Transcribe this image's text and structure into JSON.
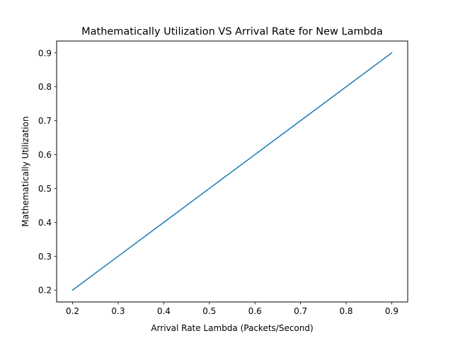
{
  "chart_data": {
    "type": "line",
    "title": "Mathematically Utilization VS Arrival Rate for New Lambda",
    "xlabel": "Arrival Rate Lambda (Packets/Second)",
    "ylabel": "Mathematically Utilization",
    "xlim": [
      0.165,
      0.935
    ],
    "ylim": [
      0.165,
      0.935
    ],
    "xticks": [
      "0.2",
      "0.3",
      "0.4",
      "0.5",
      "0.6",
      "0.7",
      "0.8",
      "0.9"
    ],
    "yticks": [
      "0.2",
      "0.3",
      "0.4",
      "0.5",
      "0.6",
      "0.7",
      "0.8",
      "0.9"
    ],
    "grid": false,
    "legend": "none",
    "series": [
      {
        "color": "#1f77b4",
        "x": [
          0.2,
          0.3,
          0.4,
          0.5,
          0.6,
          0.7,
          0.8,
          0.9
        ],
        "y": [
          0.2,
          0.3,
          0.4,
          0.5,
          0.6,
          0.7,
          0.8,
          0.9
        ]
      }
    ]
  }
}
